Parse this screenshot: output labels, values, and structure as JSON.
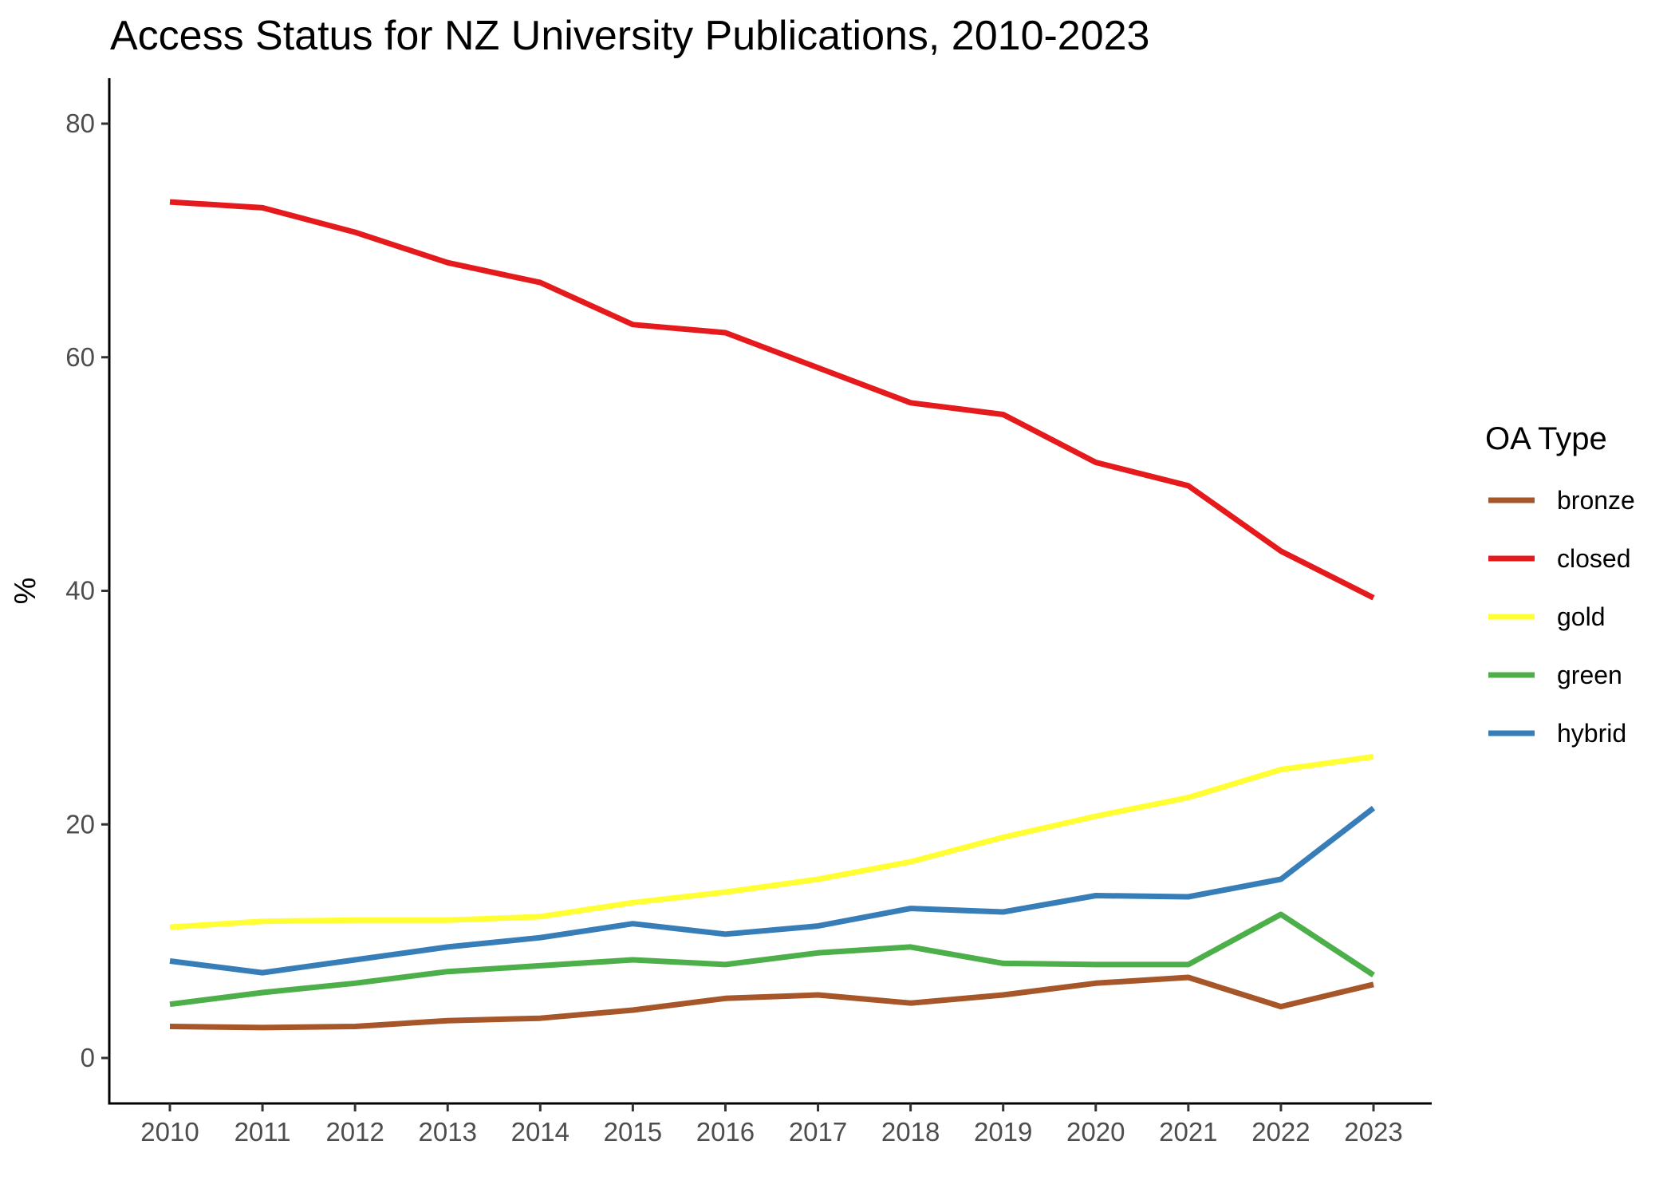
{
  "chart_data": {
    "type": "line",
    "title": "Access Status for NZ University Publications, 2010-2023",
    "xlabel": "",
    "ylabel": "%",
    "x": [
      2010,
      2011,
      2012,
      2013,
      2014,
      2015,
      2016,
      2017,
      2018,
      2019,
      2020,
      2021,
      2022,
      2023
    ],
    "ylim": [
      -4,
      84
    ],
    "yticks": [
      0,
      20,
      40,
      60,
      80
    ],
    "grid": false,
    "legend": {
      "title": "OA Type",
      "position": "right"
    },
    "series": [
      {
        "name": "bronze",
        "color": "#A65628",
        "values": [
          2.7,
          2.6,
          2.7,
          3.2,
          3.4,
          4.1,
          5.1,
          5.4,
          4.7,
          5.4,
          6.4,
          6.9,
          4.4,
          6.3
        ]
      },
      {
        "name": "closed",
        "color": "#E41A1C",
        "values": [
          73.3,
          72.8,
          70.7,
          68.1,
          66.4,
          62.8,
          62.1,
          59.1,
          56.1,
          55.1,
          51.0,
          49.0,
          43.4,
          39.4
        ]
      },
      {
        "name": "gold",
        "color": "#FFFF33",
        "values": [
          11.2,
          11.7,
          11.8,
          11.8,
          12.1,
          13.3,
          14.2,
          15.3,
          16.8,
          18.9,
          20.7,
          22.3,
          24.7,
          25.8
        ]
      },
      {
        "name": "green",
        "color": "#4DAF4A",
        "values": [
          4.6,
          5.6,
          6.4,
          7.4,
          7.9,
          8.4,
          8.0,
          9.0,
          9.5,
          8.1,
          8.0,
          8.0,
          12.3,
          7.1
        ]
      },
      {
        "name": "hybrid",
        "color": "#377EB8",
        "values": [
          8.3,
          7.3,
          8.4,
          9.5,
          10.3,
          11.5,
          10.6,
          11.3,
          12.8,
          12.5,
          13.9,
          13.8,
          15.3,
          21.4
        ]
      }
    ]
  }
}
